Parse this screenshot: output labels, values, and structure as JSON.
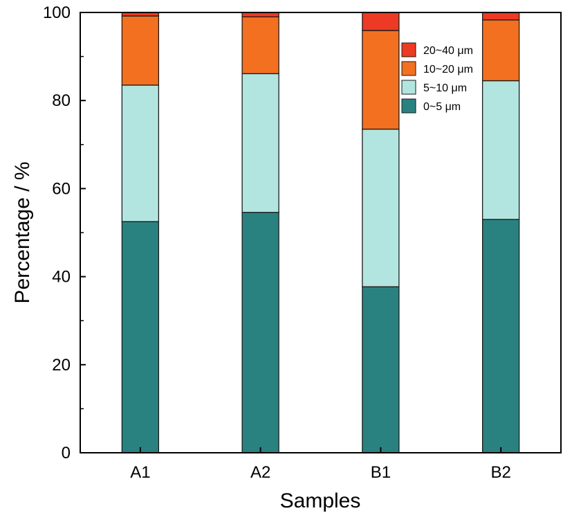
{
  "chart_data": {
    "type": "bar",
    "stacked": true,
    "categories": [
      "A1",
      "A2",
      "B1",
      "B2"
    ],
    "series": [
      {
        "name": "0~5 μm",
        "color": "#2a8280",
        "values": [
          52.5,
          54.6,
          37.7,
          53.0
        ]
      },
      {
        "name": "5~10 μm",
        "color": "#b2e5e0",
        "values": [
          31.0,
          31.5,
          35.8,
          31.5
        ]
      },
      {
        "name": "10~20 μm",
        "color": "#f37021",
        "values": [
          15.7,
          12.9,
          22.4,
          13.8
        ]
      },
      {
        "name": "20~40 μm",
        "color": "#ec3a24",
        "values": [
          0.8,
          1.0,
          4.1,
          1.7
        ]
      }
    ],
    "xlabel": "Samples",
    "ylabel": "Percentage / %",
    "ylim": [
      0,
      100
    ],
    "yticks": [
      0,
      20,
      40,
      60,
      80,
      100
    ],
    "grid": false,
    "legend": {
      "position": "top-right",
      "order": [
        "20~40 μm",
        "10~20 μm",
        "5~10 μm",
        "0~5 μm"
      ]
    }
  }
}
